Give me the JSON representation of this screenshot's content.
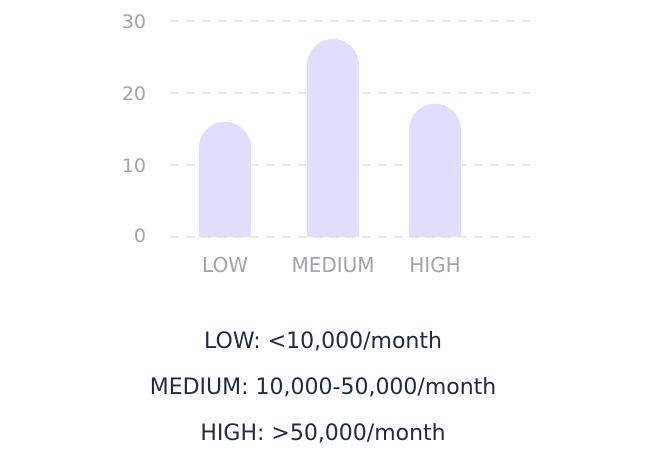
{
  "chart_data": {
    "type": "bar",
    "categories": [
      "LOW",
      "MEDIUM",
      "HIGH"
    ],
    "values": [
      16,
      27.5,
      18.5
    ],
    "ylim": [
      0,
      30
    ],
    "yticks": [
      0,
      10,
      20,
      30
    ],
    "ytick_labels": [
      "0",
      "10",
      "20",
      "30"
    ],
    "grid": true,
    "bar_color": "#e0ddfd",
    "title": "",
    "xlabel": "",
    "ylabel": ""
  },
  "legend": [
    "LOW: <10,000/month",
    "MEDIUM: 10,000-50,000/month",
    "HIGH: >50,000/month"
  ]
}
